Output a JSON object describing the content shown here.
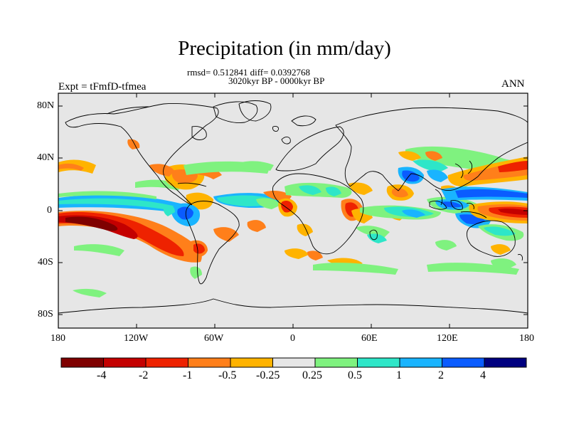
{
  "title": "Precipitation (in mm/day)",
  "stats": "rmsd= 0.512841 diff= 0.0392768",
  "period": "3020kyr BP - 0000kyr BP",
  "experiment": "Expt = tFmfD-tfmea",
  "season": "ANN",
  "lat_labels": [
    "80N",
    "40N",
    "0",
    "40S",
    "80S"
  ],
  "lon_labels": [
    "180",
    "120W",
    "60W",
    "0",
    "60E",
    "120E",
    "180"
  ],
  "colorbar": {
    "labels": [
      "-4",
      "-2",
      "-1",
      "-0.5",
      "-0.25",
      "0.25",
      "0.5",
      "1",
      "2",
      "4"
    ],
    "colors": [
      "#7f0000",
      "#c40000",
      "#ee2200",
      "#ff7f1a",
      "#ffb300",
      "#e6e6e6",
      "#7ff27f",
      "#2ee6c8",
      "#19b4ff",
      "#0a5cff",
      "#000080"
    ]
  },
  "colors": {
    "background": "#e6e6e6",
    "dark_red": "#7f0000",
    "red": "#c40000",
    "red_orange": "#ee2200",
    "orange": "#ff7f1a",
    "amber": "#ffb300",
    "light_green": "#7ff27f",
    "cyan": "#2ee6c8",
    "sky_blue": "#19b4ff",
    "blue": "#0a5cff",
    "navy": "#000080"
  }
}
